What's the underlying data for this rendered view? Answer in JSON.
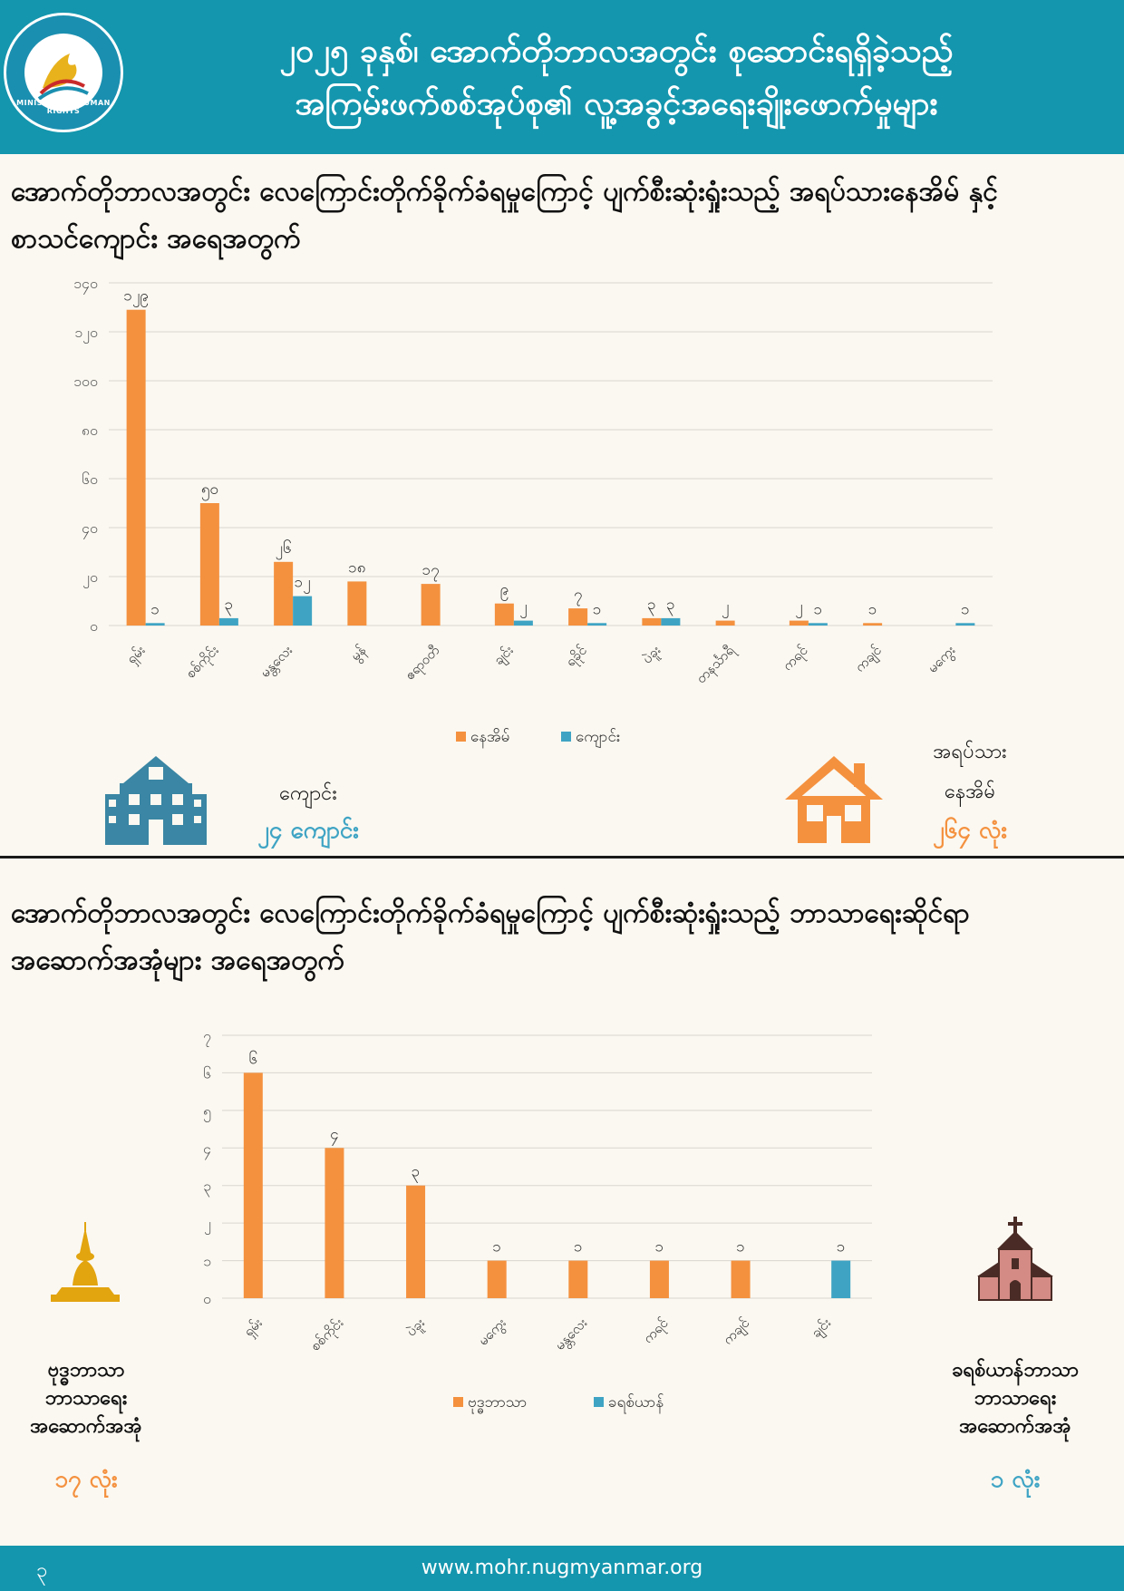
{
  "header": {
    "title_line1": "၂၀၂၅ ခုနှစ်၊ အောက်တိုဘာလအတွင်း စုဆောင်းရရှိခဲ့သည့်",
    "title_line2": "အကြမ်းဖက်စစ်အုပ်စု၏ လူ့အခွင့်အရေးချိုးဖောက်မှုများ",
    "logo_text": "MINISTRY OF HUMAN RIGHTS"
  },
  "section1": {
    "title_line1": "အောက်တိုဘာလအတွင်း လေကြောင်းတိုက်ခိုက်ခံရမှုကြောင့် ပျက်စီးဆုံးရှုံးသည့် အရပ်သားနေအိမ် နှင့်",
    "title_line2": "စာသင်ကျောင်း အရေအတွက်",
    "school_label": "ကျောင်း",
    "school_value": "၂၄ ကျောင်း",
    "house_label_1": "အရပ်သား",
    "house_label_2": "နေအိမ်",
    "house_value": "၂၆၄ လုံး",
    "colors": {
      "house": "#f4913f",
      "school": "#3fa4c4"
    }
  },
  "section2": {
    "title_line1": "အောက်တိုဘာလအတွင်း လေကြောင်းတိုက်ခိုက်ခံရမှုကြောင့် ပျက်စီးဆုံးရှုံးသည့် ဘာသာရေးဆိုင်ရာ",
    "title_line2": "အဆောက်အအုံများ အရေအတွက်",
    "buddhist_label_1": "ဗုဒ္ဓဘာသာ",
    "buddhist_label_2": "ဘာသာရေး",
    "buddhist_label_3": "အဆောက်အအုံ",
    "buddhist_value": "၁၇ လုံး",
    "christian_label_1": "ခရစ်ယာန်ဘာသာ",
    "christian_label_2": "ဘာသာရေး",
    "christian_label_3": "အဆောက်အအုံ",
    "christian_value": "၁ လုံး",
    "colors": {
      "buddhist": "#f4913f",
      "christian": "#3fa4c4"
    }
  },
  "footer": {
    "url": "www.mohr.nugmyanmar.org",
    "page": "၃"
  },
  "chart_data": [
    {
      "type": "bar",
      "categories": [
        "ရှမ်း",
        "စစ်ကိုင်း",
        "မန္တလေး",
        "မွန်",
        "ဧရာဝတီ",
        "ချင်း",
        "ရခိုင်",
        "ပဲခူး",
        "တနင်္သာရီ",
        "ကရင်",
        "ကချင်",
        "မကွေး"
      ],
      "series": [
        {
          "name": "နေအိမ်",
          "values": [
            129,
            50,
            26,
            18,
            17,
            9,
            7,
            3,
            2,
            2,
            1,
            0
          ],
          "color": "#f4913f"
        },
        {
          "name": "ကျောင်း",
          "values": [
            1,
            3,
            12,
            0,
            0,
            2,
            1,
            3,
            0,
            1,
            0,
            1
          ],
          "color": "#3fa4c4"
        }
      ],
      "ylim": [
        0,
        140
      ],
      "yticks": [
        "၀",
        "၂၀",
        "၄၀",
        "၆၀",
        "၈၀",
        "၁၀၀",
        "၁၂၀",
        "၁၄၀"
      ],
      "data_labels": {
        "series0": [
          "၁၂၉",
          "၅၀",
          "၂၆",
          "၁၈",
          "၁၇",
          "၉",
          "၇",
          "၃",
          "၂",
          "၂",
          "၁",
          ""
        ],
        "series1": [
          "၁",
          "၃",
          "၁၂",
          "",
          "",
          "၂",
          "၁",
          "၃",
          "",
          "၁",
          "",
          "၁"
        ]
      },
      "grid": true,
      "legend": "bottom"
    },
    {
      "type": "bar",
      "categories": [
        "ရှမ်း",
        "စစ်ကိုင်း",
        "ပဲခူး",
        "မကွေး",
        "မန္တလေး",
        "ကရင်",
        "ကချင်",
        "ချင်း"
      ],
      "series": [
        {
          "name": "ဗုဒ္ဓဘာသာ",
          "values": [
            6,
            4,
            3,
            1,
            1,
            1,
            1,
            0
          ],
          "color": "#f4913f"
        },
        {
          "name": "ခရစ်ယာန်",
          "values": [
            0,
            0,
            0,
            0,
            0,
            0,
            0,
            1
          ],
          "color": "#3fa4c4"
        }
      ],
      "ylim": [
        0,
        7
      ],
      "yticks": [
        "၀",
        "၁",
        "၂",
        "၃",
        "၄",
        "၅",
        "၆",
        "၇"
      ],
      "data_labels": {
        "series0": [
          "၆",
          "၄",
          "၃",
          "၁",
          "၁",
          "၁",
          "၁",
          ""
        ],
        "series1": [
          "",
          "",
          "",
          "",
          "",
          "",
          "",
          "၁"
        ]
      },
      "grid": true,
      "legend": "bottom"
    }
  ]
}
